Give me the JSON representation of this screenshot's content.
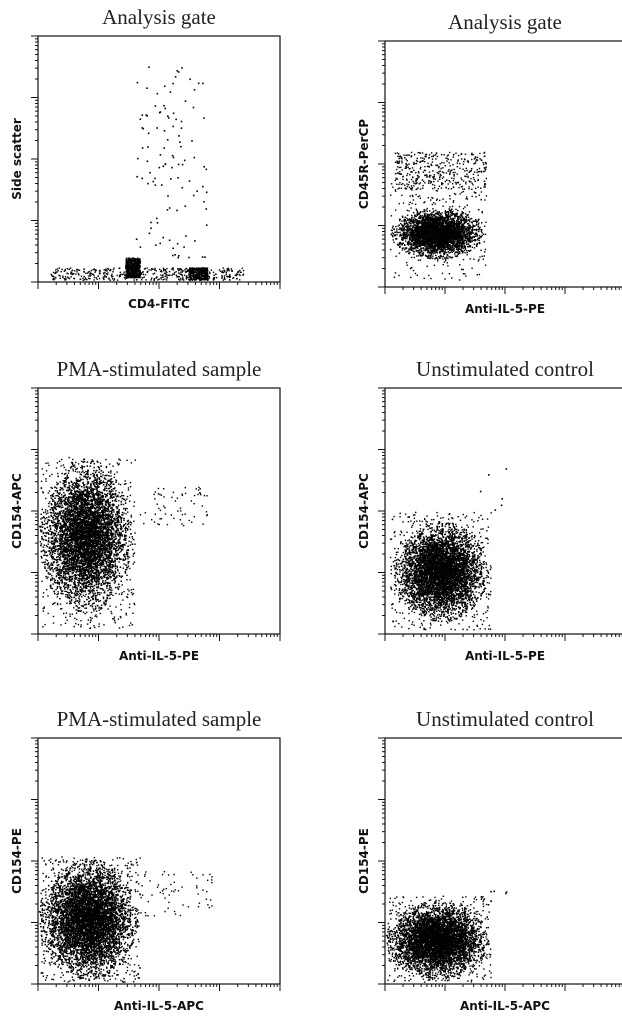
{
  "figure": {
    "background": "#ffffff",
    "ink_color": "#000000"
  },
  "chart_data": [
    {
      "type": "scatter",
      "title": "Analysis gate",
      "xlabel": "CD4-FITC",
      "ylabel": "Side scatter",
      "x_scale": "log",
      "y_scale": "log",
      "x_decades": 4,
      "y_decades": 4,
      "populations": [
        {
          "name": "",
          "x": [
            0.05,
            0.85
          ],
          "y": [
            0.01,
            0.06
          ],
          "n": 450,
          "dist": "box"
        },
        {
          "name": "",
          "x": [
            0.36,
            0.42
          ],
          "y": [
            0.02,
            0.1
          ],
          "n": 600,
          "dist": "box"
        },
        {
          "name": "",
          "x": [
            0.62,
            0.7
          ],
          "y": [
            0.01,
            0.06
          ],
          "n": 350,
          "dist": "box"
        },
        {
          "name": "",
          "x": [
            0.4,
            0.7
          ],
          "y": [
            0.1,
            0.88
          ],
          "n": 110,
          "dist": "sparse"
        }
      ]
    },
    {
      "type": "scatter",
      "title": "Analysis gate",
      "xlabel": "Anti-IL-5-PE",
      "ylabel": "CD45R-PerCP",
      "x_scale": "log",
      "y_scale": "log",
      "x_decades": 4,
      "y_decades": 4,
      "populations": [
        {
          "name": "",
          "x": [
            0.03,
            0.4
          ],
          "y": [
            0.12,
            0.32
          ],
          "n": 3500,
          "dist": "ellipse"
        },
        {
          "name": "",
          "x": [
            0.02,
            0.42
          ],
          "y": [
            0.03,
            0.45
          ],
          "n": 280,
          "dist": "box"
        },
        {
          "name": "",
          "x": [
            0.04,
            0.42
          ],
          "y": [
            0.4,
            0.55
          ],
          "n": 380,
          "dist": "box"
        }
      ]
    },
    {
      "type": "scatter",
      "title": "PMA-stimulated sample",
      "xlabel": "Anti-IL-5-PE",
      "ylabel": "CD154-APC",
      "x_scale": "log",
      "y_scale": "log",
      "x_decades": 4,
      "y_decades": 4,
      "populations": [
        {
          "name": "",
          "x": [
            0.01,
            0.38
          ],
          "y": [
            0.1,
            0.7
          ],
          "n": 7000,
          "dist": "ellipse"
        },
        {
          "name": "",
          "x": [
            0.01,
            0.4
          ],
          "y": [
            0.02,
            0.72
          ],
          "n": 600,
          "dist": "box"
        },
        {
          "name": "",
          "x": [
            0.42,
            0.7
          ],
          "y": [
            0.44,
            0.6
          ],
          "n": 65,
          "dist": "box"
        }
      ]
    },
    {
      "type": "scatter",
      "title": "Unstimulated control",
      "xlabel": "Anti-IL-5-PE",
      "ylabel": "CD154-APC",
      "x_scale": "log",
      "y_scale": "log",
      "x_decades": 4,
      "y_decades": 4,
      "populations": [
        {
          "name": "",
          "x": [
            0.04,
            0.42
          ],
          "y": [
            0.06,
            0.45
          ],
          "n": 5500,
          "dist": "ellipse"
        },
        {
          "name": "",
          "x": [
            0.02,
            0.44
          ],
          "y": [
            0.02,
            0.5
          ],
          "n": 500,
          "dist": "box"
        },
        {
          "name": "",
          "x": [
            0.38,
            0.52
          ],
          "y": [
            0.5,
            0.72
          ],
          "n": 6,
          "dist": "sparse"
        }
      ]
    },
    {
      "type": "scatter",
      "title": "PMA-stimulated sample",
      "xlabel": "Anti-IL-5-APC",
      "ylabel": "CD154-PE",
      "x_scale": "log",
      "y_scale": "log",
      "x_decades": 4,
      "y_decades": 4,
      "populations": [
        {
          "name": "",
          "x": [
            0.01,
            0.4
          ],
          "y": [
            0.03,
            0.5
          ],
          "n": 7500,
          "dist": "ellipse"
        },
        {
          "name": "",
          "x": [
            0.01,
            0.42
          ],
          "y": [
            0.01,
            0.52
          ],
          "n": 700,
          "dist": "box"
        },
        {
          "name": "",
          "x": [
            0.4,
            0.72
          ],
          "y": [
            0.28,
            0.46
          ],
          "n": 70,
          "dist": "box"
        }
      ]
    },
    {
      "type": "scatter",
      "title": "Unstimulated control",
      "xlabel": "Anti-IL-5-APC",
      "ylabel": "CD154-PE",
      "x_scale": "log",
      "y_scale": "log",
      "x_decades": 4,
      "y_decades": 4,
      "populations": [
        {
          "name": "",
          "x": [
            0.01,
            0.42
          ],
          "y": [
            0.03,
            0.33
          ],
          "n": 5200,
          "dist": "ellipse"
        },
        {
          "name": "",
          "x": [
            0.01,
            0.44
          ],
          "y": [
            0.01,
            0.36
          ],
          "n": 450,
          "dist": "box"
        },
        {
          "name": "",
          "x": [
            0.42,
            0.52
          ],
          "y": [
            0.26,
            0.38
          ],
          "n": 5,
          "dist": "sparse"
        }
      ]
    }
  ]
}
